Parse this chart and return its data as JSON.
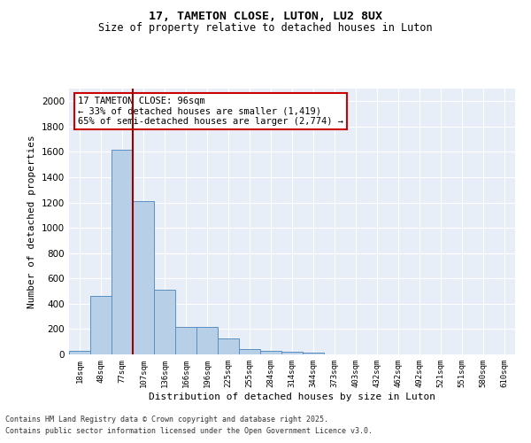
{
  "title1": "17, TAMETON CLOSE, LUTON, LU2 8UX",
  "title2": "Size of property relative to detached houses in Luton",
  "xlabel": "Distribution of detached houses by size in Luton",
  "ylabel": "Number of detached properties",
  "categories": [
    "18sqm",
    "48sqm",
    "77sqm",
    "107sqm",
    "136sqm",
    "166sqm",
    "196sqm",
    "225sqm",
    "255sqm",
    "284sqm",
    "314sqm",
    "344sqm",
    "373sqm",
    "403sqm",
    "432sqm",
    "462sqm",
    "492sqm",
    "521sqm",
    "551sqm",
    "580sqm",
    "610sqm"
  ],
  "values": [
    30,
    460,
    1620,
    1210,
    510,
    215,
    215,
    125,
    40,
    25,
    20,
    15,
    0,
    0,
    0,
    0,
    0,
    0,
    0,
    0,
    0
  ],
  "bar_color": "#b8cfe8",
  "bar_edge_color": "#5a8fc2",
  "background_color": "#e8eef8",
  "grid_color": "#ffffff",
  "red_line_x": 2.5,
  "annotation_text": "17 TAMETON CLOSE: 96sqm\n← 33% of detached houses are smaller (1,419)\n65% of semi-detached houses are larger (2,774) →",
  "annotation_box_color": "#ffffff",
  "annotation_box_edge": "#cc0000",
  "ylim": [
    0,
    2100
  ],
  "yticks": [
    0,
    200,
    400,
    600,
    800,
    1000,
    1200,
    1400,
    1600,
    1800,
    2000
  ],
  "footer1": "Contains HM Land Registry data © Crown copyright and database right 2025.",
  "footer2": "Contains public sector information licensed under the Open Government Licence v3.0."
}
